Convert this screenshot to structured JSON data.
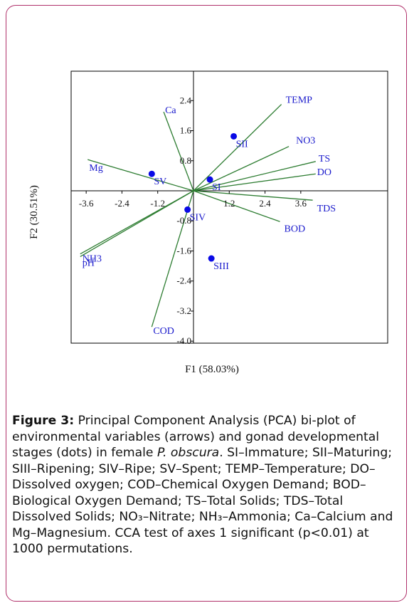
{
  "caption": {
    "label": "Figure 3:",
    "text_a": " Principal Component Analysis (PCA) bi-plot of environmental variables (arrows) and gonad developmental stages (dots) in female ",
    "species": "P. obscura",
    "text_b": ". SI–Immature; SII–Maturing; SIII–Ripening; SIV–Ripe; SV–Spent; TEMP–Temperature; DO–Dissolved oxygen; COD–Chemical Oxygen Demand; BOD–Biological Oxygen Demand; TS–Total Solids; TDS–Total Dissolved Solids; NO₃–Nitrate; NH₃–Ammonia; Ca–Calcium and Mg–Magnesium. CCA test of axes 1 significant (p<0.01) at 1000 permutations."
  },
  "chart_data": {
    "type": "scatter",
    "xlabel": "F1 (58.03%)",
    "ylabel": "F2 (30.51%)",
    "xlim": [
      -4.6,
      5.1
    ],
    "ylim": [
      -4.0,
      3.0
    ],
    "x_ticks": [
      "-3.6",
      "-2.4",
      "-1.2",
      "1.2",
      "2.4",
      "3.6"
    ],
    "x_tick_values": [
      -3.6,
      -2.4,
      -1.2,
      1.2,
      2.4,
      3.6
    ],
    "y_ticks": [
      "2.4",
      "1.6",
      "0.8",
      "-0.8",
      "-1.6",
      "-2.4",
      "-3.2",
      "-4.0"
    ],
    "y_tick_values": [
      2.4,
      1.6,
      0.8,
      -0.8,
      -1.6,
      -2.4,
      -3.2,
      -4.0
    ],
    "colors": {
      "arrow": "#2e7d32",
      "point": "#0a0ae6",
      "label": "#1a1acc",
      "axis": "#000000"
    },
    "variables": [
      {
        "name": "TEMP",
        "x": 2.95,
        "y": 2.3
      },
      {
        "name": "NO3",
        "x": 3.2,
        "y": 1.18
      },
      {
        "name": "TS",
        "x": 4.1,
        "y": 0.78
      },
      {
        "name": "DO",
        "x": 4.1,
        "y": 0.45
      },
      {
        "name": "TDS",
        "x": 4.0,
        "y": -0.25
      },
      {
        "name": "BOD",
        "x": 2.9,
        "y": -0.82
      },
      {
        "name": "Ca",
        "x": -1.0,
        "y": 2.1
      },
      {
        "name": "Mg",
        "x": -3.55,
        "y": 0.83
      },
      {
        "name": "NH3",
        "x": -3.8,
        "y": -1.68
      },
      {
        "name": "pH",
        "x": -3.8,
        "y": -1.75
      },
      {
        "name": "COD",
        "x": -1.4,
        "y": -3.62
      }
    ],
    "stages": [
      {
        "name": "SI",
        "x": 0.55,
        "y": 0.3
      },
      {
        "name": "SII",
        "x": 1.35,
        "y": 1.45
      },
      {
        "name": "SIII",
        "x": 0.6,
        "y": -1.8
      },
      {
        "name": "SIV",
        "x": -0.2,
        "y": -0.5
      },
      {
        "name": "SV",
        "x": -1.4,
        "y": 0.45
      }
    ]
  }
}
